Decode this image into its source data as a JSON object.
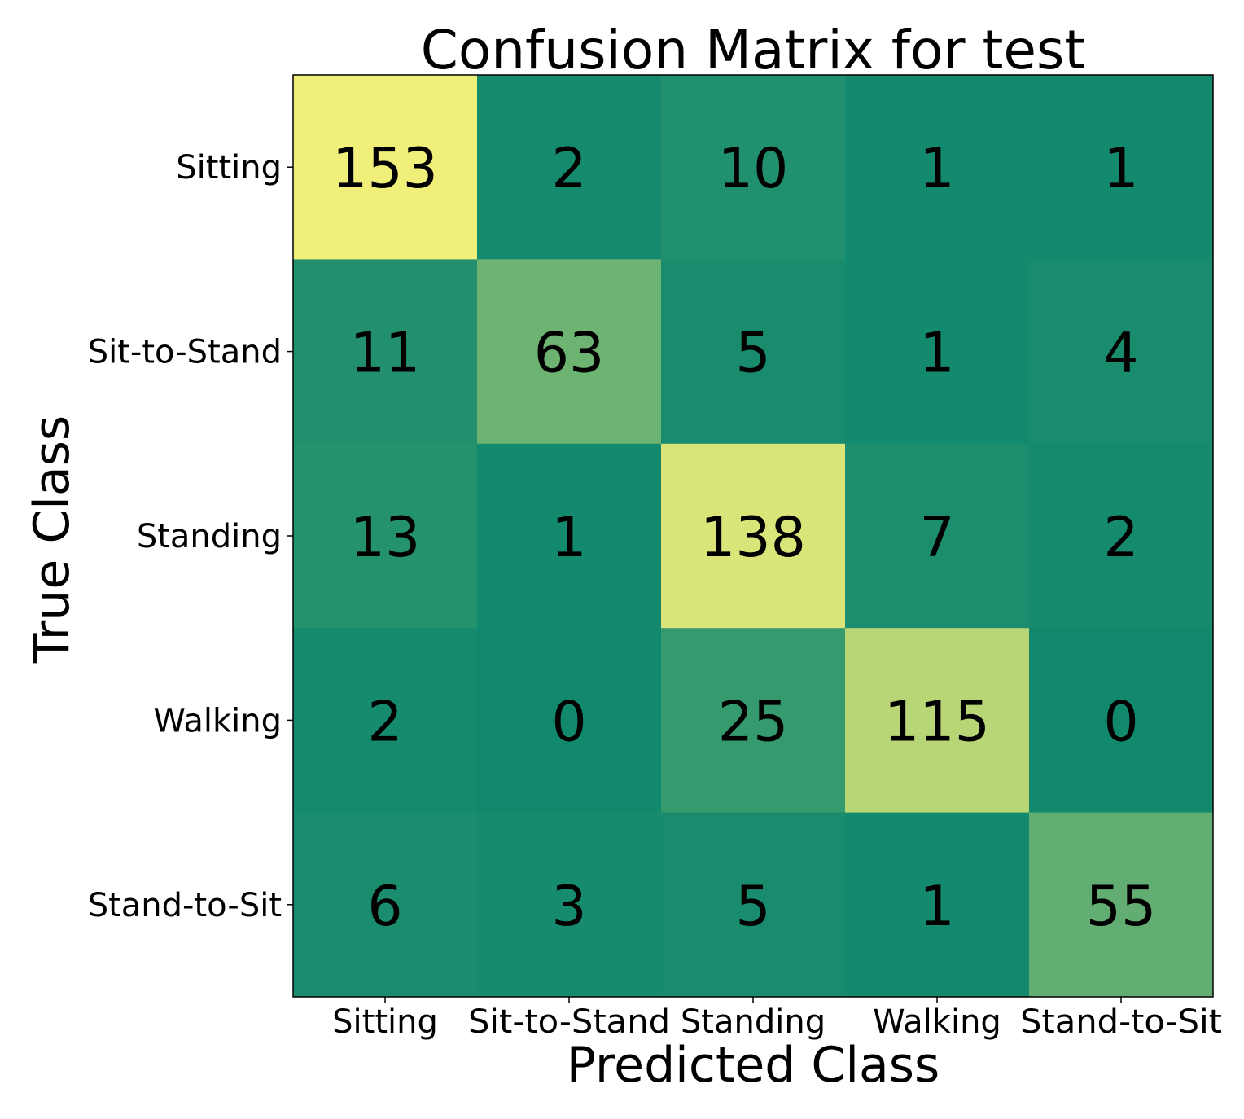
{
  "chart_data": {
    "type": "heatmap",
    "title": "Confusion Matrix for test",
    "xlabel": "Predicted Class",
    "ylabel": "True Class",
    "x_categories": [
      "Sitting",
      "Sit-to-Stand",
      "Standing",
      "Walking",
      "Stand-to-Sit"
    ],
    "y_categories": [
      "Sitting",
      "Sit-to-Stand",
      "Standing",
      "Walking",
      "Stand-to-Sit"
    ],
    "values": [
      [
        153,
        2,
        10,
        1,
        1
      ],
      [
        11,
        63,
        5,
        1,
        4
      ],
      [
        13,
        1,
        138,
        7,
        2
      ],
      [
        2,
        0,
        25,
        115,
        0
      ],
      [
        6,
        3,
        5,
        1,
        55
      ]
    ],
    "value_range": [
      0,
      153
    ],
    "colormap": "summer_r",
    "colors": {
      "low": "#12896d",
      "high": "#f0ef7a",
      "frame": "#000000",
      "text": "#000000"
    },
    "grid": false,
    "legend": "none"
  }
}
